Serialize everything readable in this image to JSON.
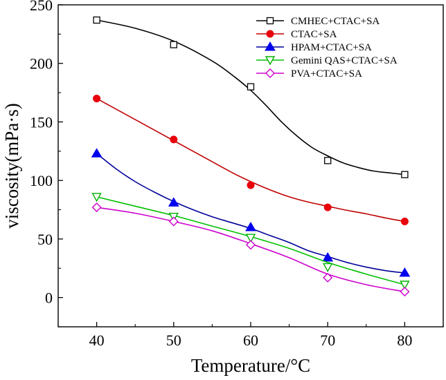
{
  "chart_data": {
    "type": "line",
    "title": "",
    "xlabel": "Temperature/°C",
    "ylabel": "viscosity(mPa·s)",
    "xlim": [
      35,
      85
    ],
    "ylim": [
      -25,
      250
    ],
    "xticks": [
      40,
      50,
      60,
      70,
      80
    ],
    "yticks": [
      0,
      50,
      100,
      150,
      200,
      250
    ],
    "legend_position": "top-right",
    "x": [
      40,
      50,
      60,
      70,
      80
    ],
    "series": [
      {
        "name": "CMHEC+CTAC+SA",
        "marker": "square-open",
        "marker_color": "#000000",
        "line_color": "#000000",
        "values": [
          237,
          216,
          180,
          117,
          105
        ],
        "curve": [
          [
            40,
            237
          ],
          [
            45,
            230
          ],
          [
            50,
            219
          ],
          [
            55,
            202
          ],
          [
            58,
            188
          ],
          [
            60,
            177
          ],
          [
            62,
            164
          ],
          [
            64,
            150
          ],
          [
            66,
            138
          ],
          [
            68,
            128
          ],
          [
            70,
            121
          ],
          [
            72,
            115
          ],
          [
            74,
            111
          ],
          [
            76,
            108
          ],
          [
            78,
            106.5
          ],
          [
            80,
            105
          ]
        ]
      },
      {
        "name": "CTAC+SA",
        "marker": "circle-filled",
        "marker_color": "#e8000b",
        "line_color": "#c00000",
        "values": [
          170,
          135,
          96,
          77,
          65
        ],
        "curve": [
          [
            40,
            170
          ],
          [
            42.5,
            161
          ],
          [
            45,
            152
          ],
          [
            47.5,
            143
          ],
          [
            50,
            134
          ],
          [
            52.5,
            125
          ],
          [
            55,
            116
          ],
          [
            57.5,
            107
          ],
          [
            60,
            99
          ],
          [
            62.5,
            92
          ],
          [
            65,
            86
          ],
          [
            67.5,
            81.5
          ],
          [
            70,
            78
          ],
          [
            72.5,
            74.5
          ],
          [
            75,
            71.5
          ],
          [
            77.5,
            68
          ],
          [
            80,
            65
          ]
        ]
      },
      {
        "name": "HPAM+CTAC+SA",
        "marker": "triangle-up-filled",
        "marker_color": "#0000ee",
        "line_color": "#000099",
        "values": [
          123,
          81,
          60,
          34,
          21
        ],
        "curve": [
          [
            40,
            123
          ],
          [
            42.5,
            110
          ],
          [
            45,
            99
          ],
          [
            47.5,
            90
          ],
          [
            50,
            82
          ],
          [
            52.5,
            75
          ],
          [
            55,
            69
          ],
          [
            57.5,
            64
          ],
          [
            60,
            59
          ],
          [
            62.5,
            53
          ],
          [
            65,
            47
          ],
          [
            67.5,
            40
          ],
          [
            70,
            35
          ],
          [
            72.5,
            30
          ],
          [
            75,
            26
          ],
          [
            77.5,
            23
          ],
          [
            80,
            21
          ]
        ]
      },
      {
        "name": "Gemini QAS+CTAC+SA",
        "marker": "triangle-down-open",
        "marker_color": "#00b000",
        "line_color": "#00c000",
        "values": [
          86,
          69,
          51,
          26,
          11
        ],
        "curve": [
          [
            40,
            86
          ],
          [
            45,
            78
          ],
          [
            50,
            70
          ],
          [
            55,
            61
          ],
          [
            60,
            52
          ],
          [
            65,
            42
          ],
          [
            70,
            30
          ],
          [
            75,
            20
          ],
          [
            80,
            11
          ]
        ]
      },
      {
        "name": "PVA+CTAC+SA",
        "marker": "diamond-open",
        "marker_color": "#cc00cc",
        "line_color": "#cc00cc",
        "values": [
          77,
          65,
          45,
          17,
          5
        ],
        "curve": [
          [
            40,
            77
          ],
          [
            45,
            72
          ],
          [
            50,
            65
          ],
          [
            55,
            57
          ],
          [
            60,
            46
          ],
          [
            65,
            34
          ],
          [
            70,
            20
          ],
          [
            75,
            11
          ],
          [
            80,
            5
          ]
        ]
      }
    ]
  }
}
